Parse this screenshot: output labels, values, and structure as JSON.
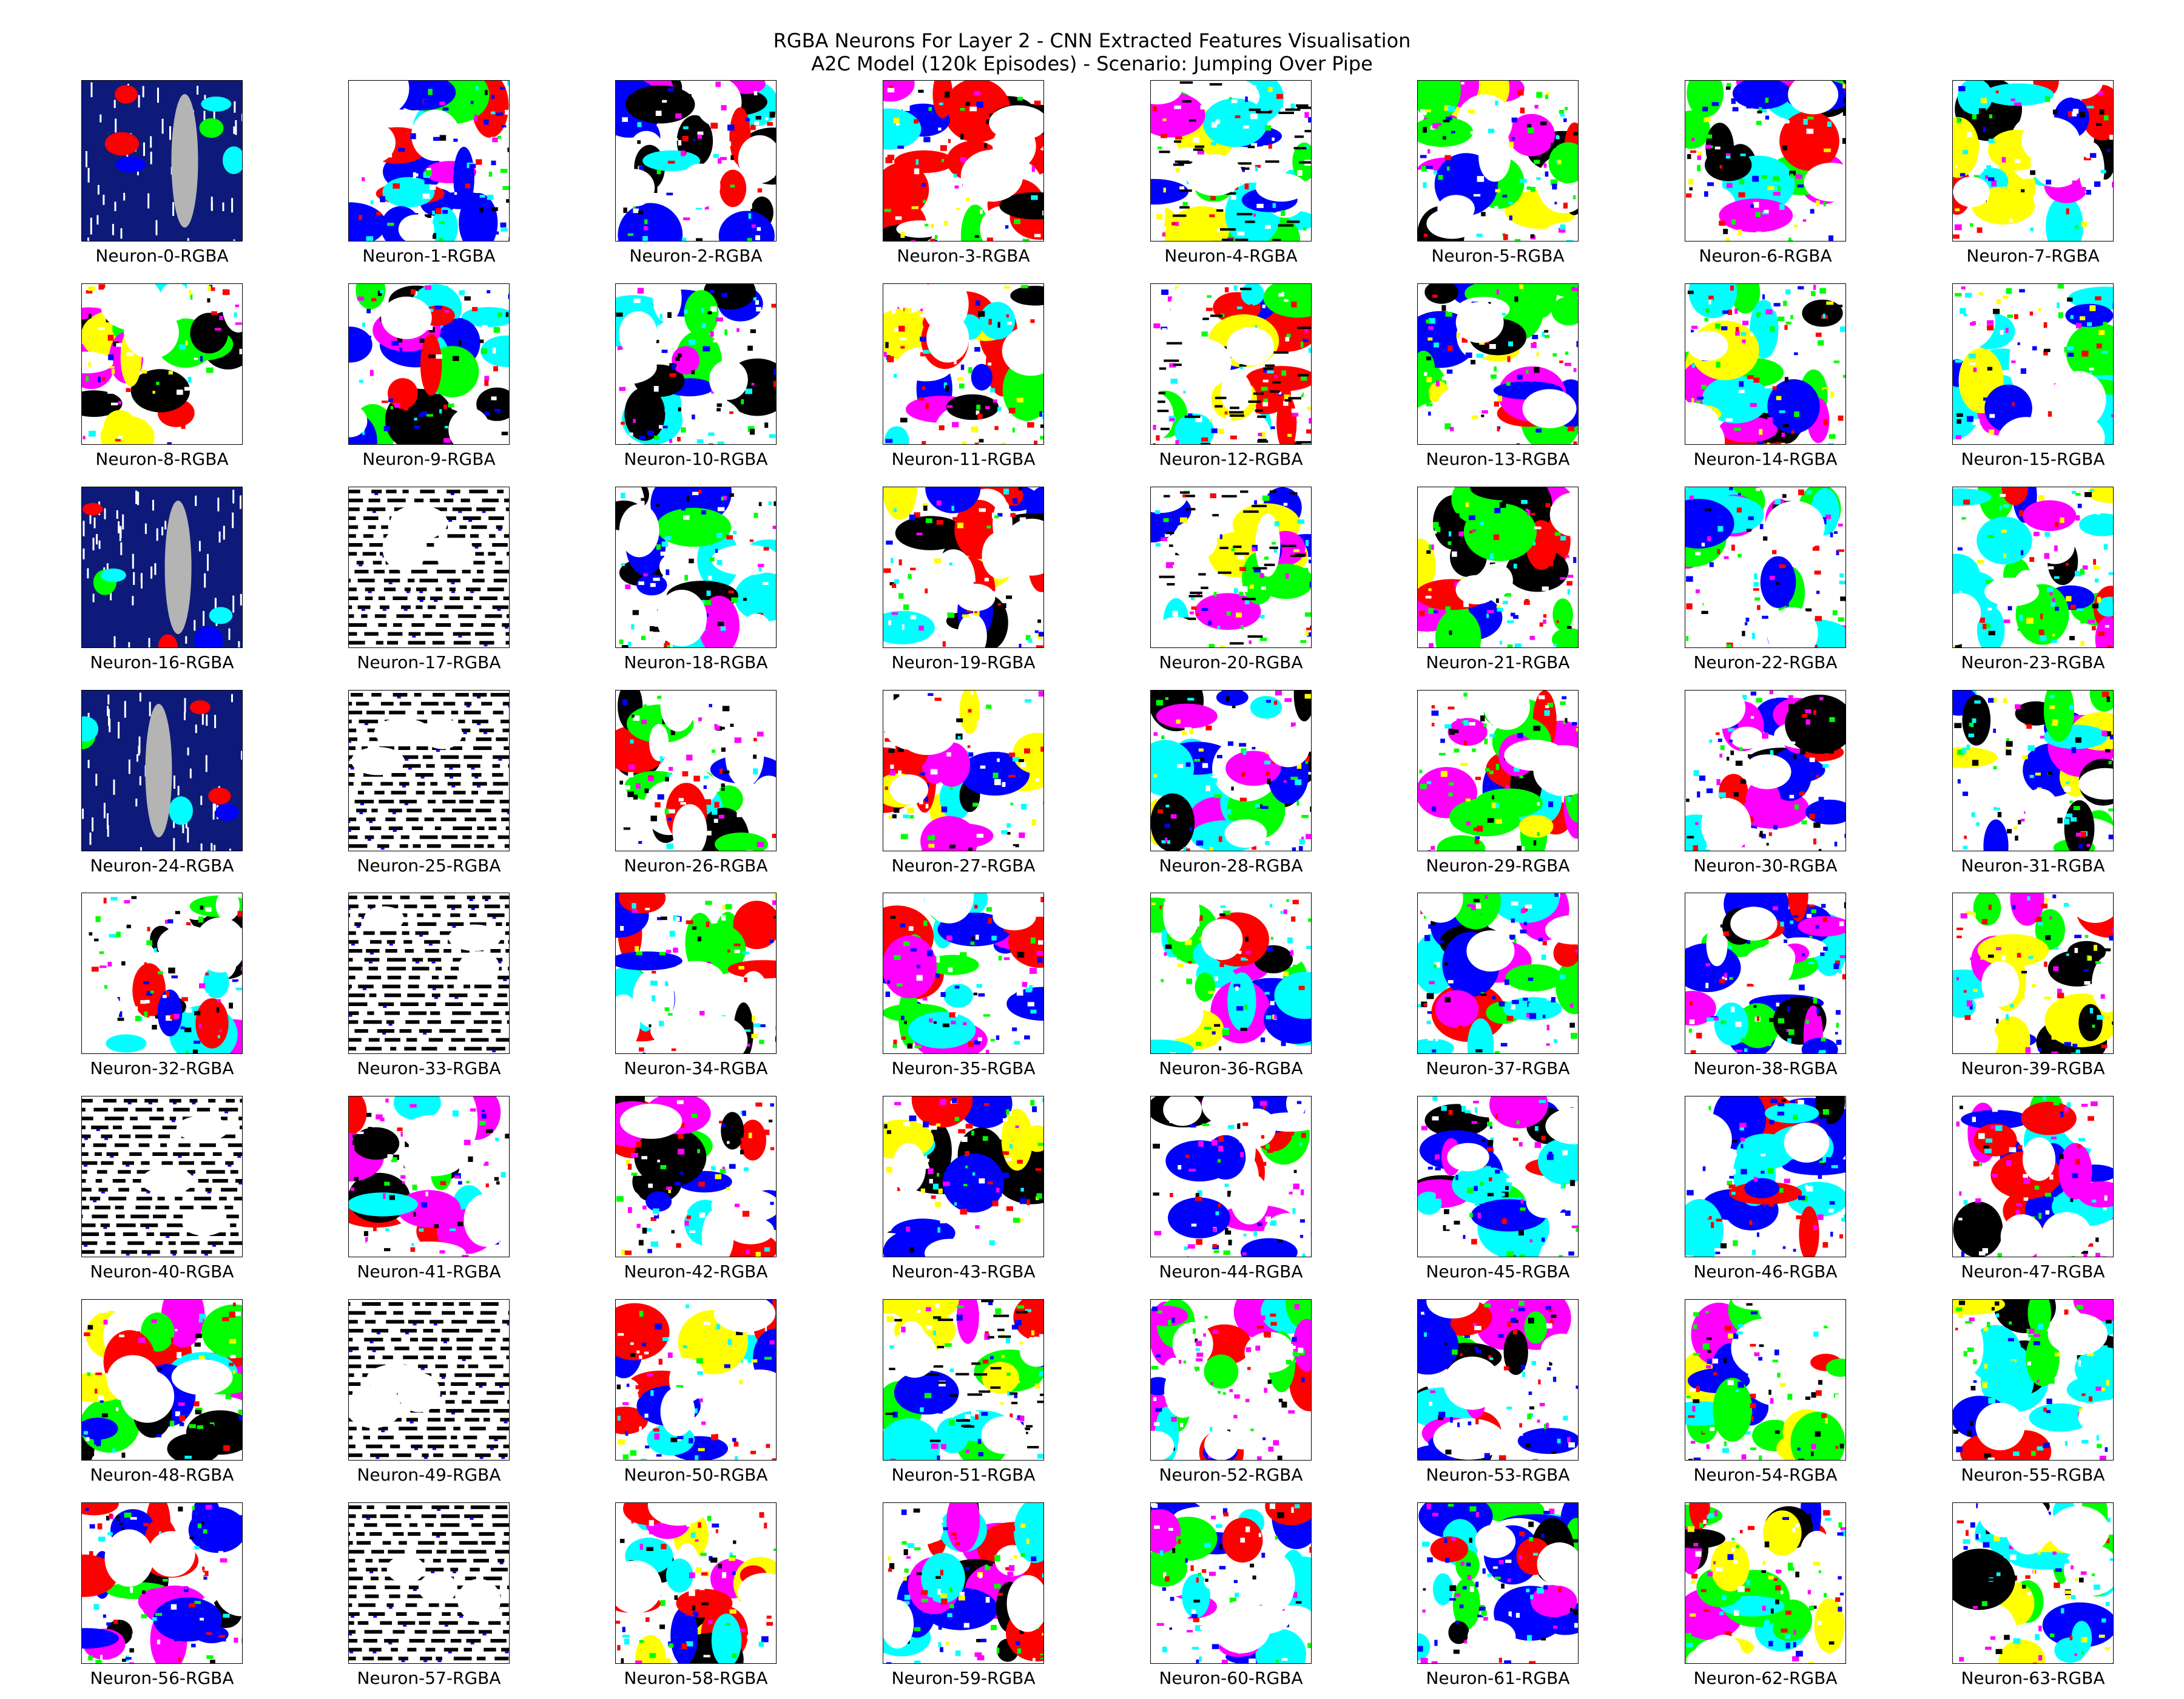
{
  "title": {
    "line1": "RGBA Neurons For Layer 2 - CNN Extracted Features Visualisation",
    "line2": "A2C Model (120k Episodes) - Scenario: Jumping Over Pipe"
  },
  "chart_data": {
    "type": "image-grid",
    "rows": 8,
    "columns": 8,
    "palette": {
      "white": "#ffffff",
      "black": "#000000",
      "red": "#ff0000",
      "green": "#00ff00",
      "blue": "#0000ff",
      "cyan": "#00ffff",
      "magenta": "#ff00ff",
      "yellow": "#ffff00",
      "navy": "#0d1a7a",
      "gray": "#b4b4b4"
    },
    "panels": [
      {
        "label": "Neuron-0-RGBA",
        "style": "navy-stripes"
      },
      {
        "label": "Neuron-1-RGBA",
        "style": "mixed-blue"
      },
      {
        "label": "Neuron-2-RGBA",
        "style": "mixed-black"
      },
      {
        "label": "Neuron-3-RGBA",
        "style": "mixed-red"
      },
      {
        "label": "Neuron-4-RGBA",
        "style": "stripes-mixed"
      },
      {
        "label": "Neuron-5-RGBA",
        "style": "mixed-green"
      },
      {
        "label": "Neuron-6-RGBA",
        "style": "mixed-green"
      },
      {
        "label": "Neuron-7-RGBA",
        "style": "mixed-cyan"
      },
      {
        "label": "Neuron-8-RGBA",
        "style": "mixed-red"
      },
      {
        "label": "Neuron-9-RGBA",
        "style": "mixed-blue"
      },
      {
        "label": "Neuron-10-RGBA",
        "style": "mixed-black"
      },
      {
        "label": "Neuron-11-RGBA",
        "style": "mixed-red"
      },
      {
        "label": "Neuron-12-RGBA",
        "style": "stripes-mixed"
      },
      {
        "label": "Neuron-13-RGBA",
        "style": "mixed-green"
      },
      {
        "label": "Neuron-14-RGBA",
        "style": "mixed-green"
      },
      {
        "label": "Neuron-15-RGBA",
        "style": "mixed-cyan"
      },
      {
        "label": "Neuron-16-RGBA",
        "style": "navy-stripes"
      },
      {
        "label": "Neuron-17-RGBA",
        "style": "stripes-bw"
      },
      {
        "label": "Neuron-18-RGBA",
        "style": "mixed-black"
      },
      {
        "label": "Neuron-19-RGBA",
        "style": "mixed-red"
      },
      {
        "label": "Neuron-20-RGBA",
        "style": "stripes-mixed"
      },
      {
        "label": "Neuron-21-RGBA",
        "style": "mixed-green"
      },
      {
        "label": "Neuron-22-RGBA",
        "style": "mixed-blue"
      },
      {
        "label": "Neuron-23-RGBA",
        "style": "mixed-cyan"
      },
      {
        "label": "Neuron-24-RGBA",
        "style": "navy-stripes"
      },
      {
        "label": "Neuron-25-RGBA",
        "style": "stripes-bw"
      },
      {
        "label": "Neuron-26-RGBA",
        "style": "mixed-black"
      },
      {
        "label": "Neuron-27-RGBA",
        "style": "mixed-red"
      },
      {
        "label": "Neuron-28-RGBA",
        "style": "mixed-cyan"
      },
      {
        "label": "Neuron-29-RGBA",
        "style": "mixed-green"
      },
      {
        "label": "Neuron-30-RGBA",
        "style": "mixed-blue"
      },
      {
        "label": "Neuron-31-RGBA",
        "style": "mixed-cyan"
      },
      {
        "label": "Neuron-32-RGBA",
        "style": "mixed-black"
      },
      {
        "label": "Neuron-33-RGBA",
        "style": "stripes-bw"
      },
      {
        "label": "Neuron-34-RGBA",
        "style": "mixed-red"
      },
      {
        "label": "Neuron-35-RGBA",
        "style": "mixed-blue"
      },
      {
        "label": "Neuron-36-RGBA",
        "style": "mixed-cyan"
      },
      {
        "label": "Neuron-37-RGBA",
        "style": "mixed-blue"
      },
      {
        "label": "Neuron-38-RGBA",
        "style": "mixed-blue"
      },
      {
        "label": "Neuron-39-RGBA",
        "style": "mixed-cyan"
      },
      {
        "label": "Neuron-40-RGBA",
        "style": "stripes-bw"
      },
      {
        "label": "Neuron-41-RGBA",
        "style": "mixed-black"
      },
      {
        "label": "Neuron-42-RGBA",
        "style": "mixed-red"
      },
      {
        "label": "Neuron-43-RGBA",
        "style": "mixed-red"
      },
      {
        "label": "Neuron-44-RGBA",
        "style": "mixed-magenta"
      },
      {
        "label": "Neuron-45-RGBA",
        "style": "mixed-blue"
      },
      {
        "label": "Neuron-46-RGBA",
        "style": "mixed-blue"
      },
      {
        "label": "Neuron-47-RGBA",
        "style": "mixed-magenta"
      },
      {
        "label": "Neuron-48-RGBA",
        "style": "mixed-red"
      },
      {
        "label": "Neuron-49-RGBA",
        "style": "stripes-bw"
      },
      {
        "label": "Neuron-50-RGBA",
        "style": "mixed-red"
      },
      {
        "label": "Neuron-51-RGBA",
        "style": "stripes-mixed"
      },
      {
        "label": "Neuron-52-RGBA",
        "style": "mixed-magenta"
      },
      {
        "label": "Neuron-53-RGBA",
        "style": "mixed-blue"
      },
      {
        "label": "Neuron-54-RGBA",
        "style": "mixed-green"
      },
      {
        "label": "Neuron-55-RGBA",
        "style": "mixed-cyan"
      },
      {
        "label": "Neuron-56-RGBA",
        "style": "mixed-blue"
      },
      {
        "label": "Neuron-57-RGBA",
        "style": "stripes-bw"
      },
      {
        "label": "Neuron-58-RGBA",
        "style": "mixed-red"
      },
      {
        "label": "Neuron-59-RGBA",
        "style": "mixed-cyan"
      },
      {
        "label": "Neuron-60-RGBA",
        "style": "mixed-magenta"
      },
      {
        "label": "Neuron-61-RGBA",
        "style": "mixed-blue"
      },
      {
        "label": "Neuron-62-RGBA",
        "style": "mixed-cyan"
      },
      {
        "label": "Neuron-63-RGBA",
        "style": "mixed-cyan"
      }
    ]
  }
}
